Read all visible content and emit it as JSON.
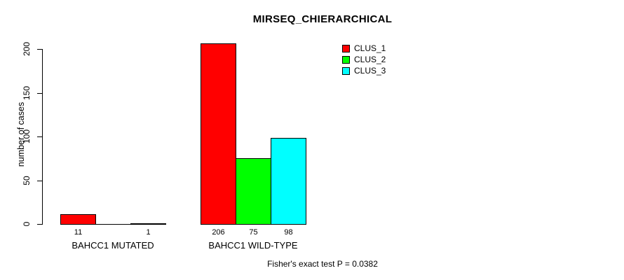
{
  "chart_data": {
    "type": "bar",
    "title": "MIRSEQ_CHIERARCHICAL",
    "ylabel": "number of cases",
    "xlabel": "",
    "ylim": [
      0,
      200
    ],
    "yticks": [
      0,
      50,
      100,
      150,
      200
    ],
    "categories": [
      "BAHCC1 MUTATED",
      "BAHCC1 WILD-TYPE"
    ],
    "series": [
      {
        "name": "CLUS_1",
        "color": "#ff0000",
        "values": [
          11,
          206
        ]
      },
      {
        "name": "CLUS_2",
        "color": "#00ff00",
        "values": [
          0,
          75
        ]
      },
      {
        "name": "CLUS_3",
        "color": "#00ffff",
        "values": [
          1,
          98
        ]
      }
    ],
    "bar_labels": [
      [
        "11",
        "",
        "1"
      ],
      [
        "206",
        "75",
        "98"
      ]
    ],
    "legend": {
      "position": "top-right",
      "entries": [
        "CLUS_1",
        "CLUS_2",
        "CLUS_3"
      ]
    },
    "grid": false,
    "annotation": "Fisher's exact test P = 0.0382",
    "axis_color": "#000000",
    "bar_border_color": "#000000",
    "background_color": "#ffffff"
  }
}
